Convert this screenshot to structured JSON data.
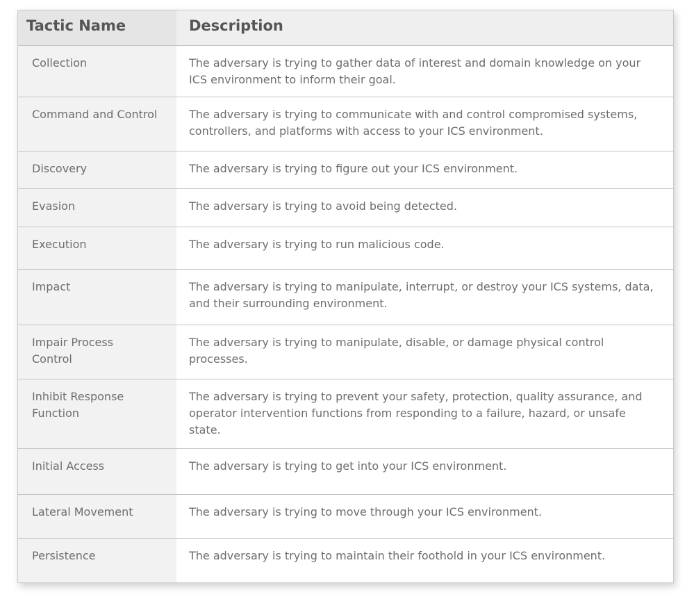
{
  "headers": {
    "name": "Tactic Name",
    "description": "Description"
  },
  "rows": [
    {
      "name": "Collection",
      "description": "The adversary is trying to gather data of interest and domain knowledge on your ICS environment to inform their goal."
    },
    {
      "name": "Command and Control",
      "description": "The adversary is trying to communicate with and control compromised systems, controllers, and platforms with access to your ICS environment."
    },
    {
      "name": "Discovery",
      "description": "The adversary is trying to figure out your ICS environment."
    },
    {
      "name": "Evasion",
      "description": "The adversary is trying to avoid being detected."
    },
    {
      "name": "Execution",
      "description": "The adversary is trying to run malicious code."
    },
    {
      "name": "Impact",
      "description": "The adversary is trying to manipulate, interrupt, or destroy your ICS systems, data, and their surrounding environment."
    },
    {
      "name": "Impair Process Control",
      "description": "The adversary is trying to manipulate, disable, or damage physical control processes."
    },
    {
      "name": "Inhibit Response Function",
      "description": "The adversary is trying to prevent your safety, protection, quality assurance, and operator intervention functions from responding to a failure, hazard, or unsafe state."
    },
    {
      "name": "Initial Access",
      "description": "The adversary is trying to get into your ICS environment."
    },
    {
      "name": "Lateral Movement",
      "description": "The adversary is trying to move through your ICS environment."
    },
    {
      "name": "Persistence",
      "description": "The adversary is trying to maintain their foothold in your ICS environment."
    }
  ]
}
